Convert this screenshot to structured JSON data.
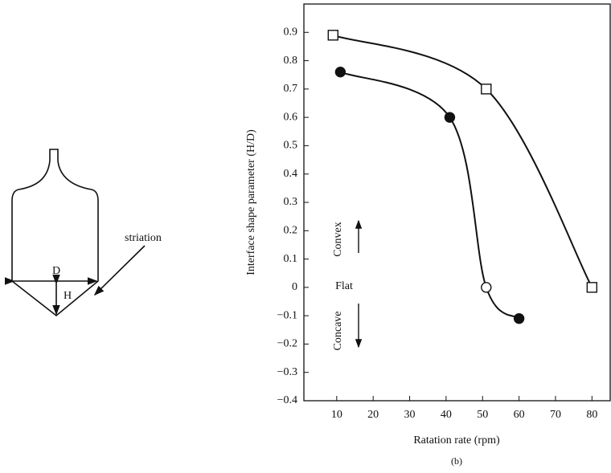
{
  "diagram": {
    "width_label": "D",
    "height_label": "H",
    "striation_label": "striation"
  },
  "chart_data": {
    "type": "line",
    "x_label": "Ratation rate (rpm)",
    "y_label": "Interface shape parameter (H/D)",
    "caption": "(b)",
    "annotations": {
      "convex": "Convex",
      "flat": "Flat",
      "concave": "Concave"
    },
    "xlim": [
      1,
      85
    ],
    "ylim": [
      -0.4,
      1.0
    ],
    "xticks": [
      10,
      20,
      30,
      40,
      50,
      60,
      70,
      80
    ],
    "yticks": [
      {
        "value": -0.4,
        "label": "−0.4"
      },
      {
        "value": -0.3,
        "label": "−0.3"
      },
      {
        "value": -0.2,
        "label": "−0.2"
      },
      {
        "value": -0.1,
        "label": "−0.1"
      },
      0,
      0.1,
      0.2,
      0.3,
      0.4,
      0.5,
      0.6,
      0.7,
      0.8,
      0.9
    ],
    "color": "#111111",
    "series": [
      {
        "marker": "square",
        "filled": [
          false,
          false,
          false
        ],
        "x": [
          9,
          51,
          80
        ],
        "values": [
          0.89,
          0.7,
          0.0
        ]
      },
      {
        "marker": "circle",
        "filled": [
          true,
          true,
          false,
          true
        ],
        "x": [
          11,
          41,
          51,
          60
        ],
        "values": [
          0.76,
          0.6,
          0.0,
          -0.11
        ]
      }
    ]
  }
}
